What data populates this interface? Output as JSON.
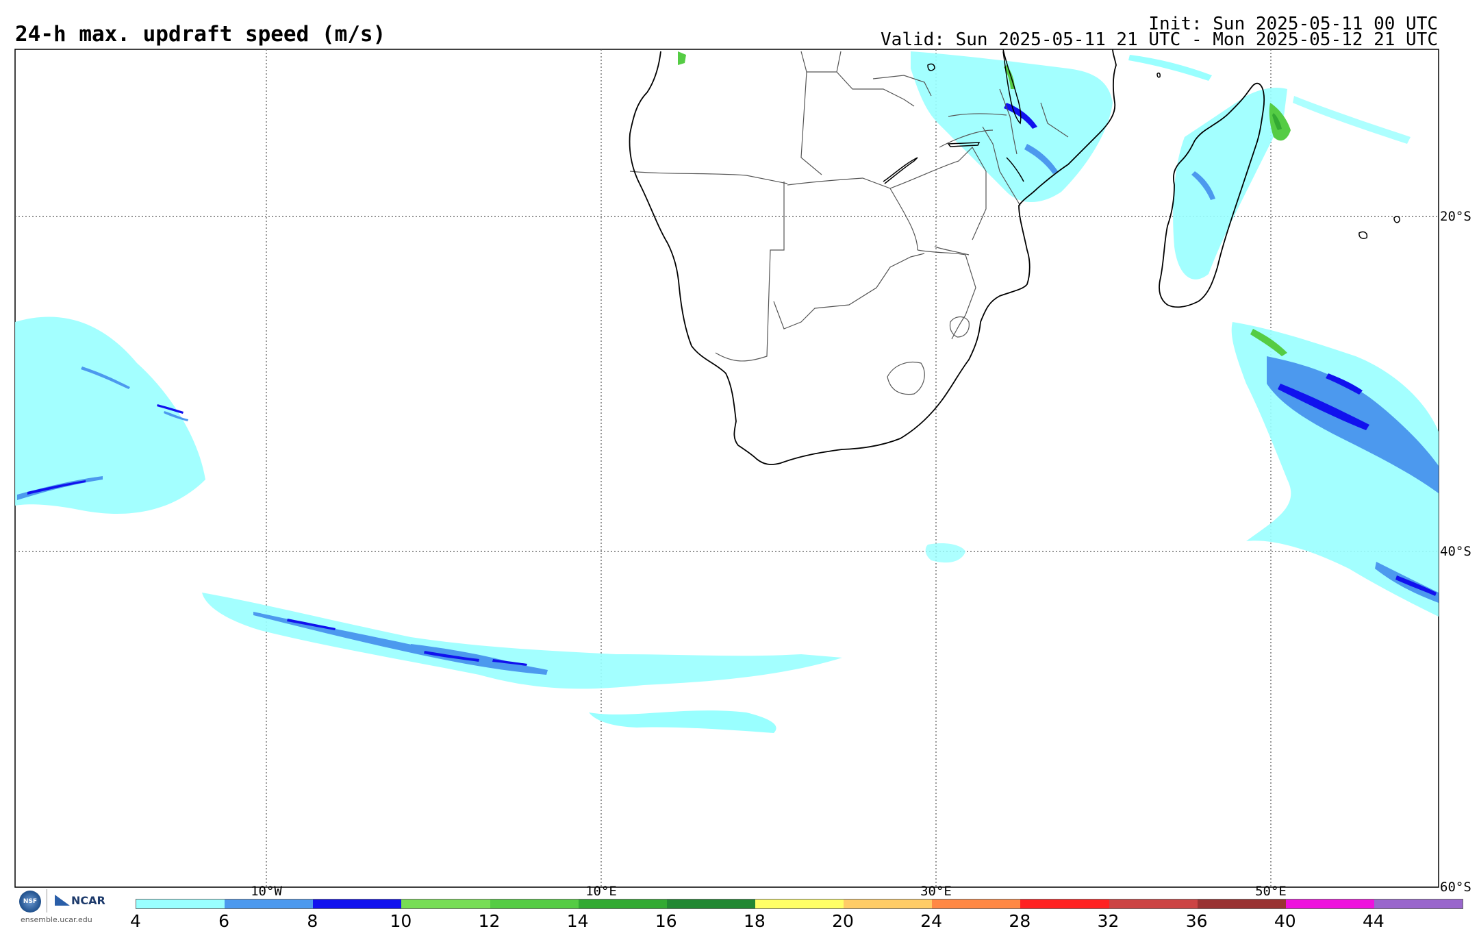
{
  "header": {
    "title": "24-h max. updraft speed (m/s)",
    "init": "Init: Sun 2025-05-11 00 UTC",
    "valid": "Valid: Sun 2025-05-11 21 UTC - Mon 2025-05-12 21 UTC"
  },
  "map": {
    "lon_labels": [
      "10°W",
      "10°E",
      "30°E",
      "50°E"
    ],
    "lat_labels": [
      "20°S",
      "40°S",
      "60°S"
    ],
    "colors": {
      "coast": "#000000",
      "borders": "#555555",
      "grid": "#555555"
    }
  },
  "colorbar": {
    "labels": [
      "4",
      "6",
      "8",
      "10",
      "12",
      "14",
      "16",
      "18",
      "20",
      "24",
      "28",
      "32",
      "36",
      "40",
      "44"
    ],
    "colors": [
      "#99ffff",
      "#4c99ee",
      "#1111ee",
      "#77dd55",
      "#55cc44",
      "#33aa33",
      "#228833",
      "#ffff66",
      "#ffcc66",
      "#ff8844",
      "#ff2222",
      "#cc4444",
      "#993333",
      "#ee11dd",
      "#9966cc"
    ]
  },
  "logo": {
    "nsf": "NSF",
    "ncar": "NCAR",
    "url": "ensemble.ucar.edu"
  }
}
